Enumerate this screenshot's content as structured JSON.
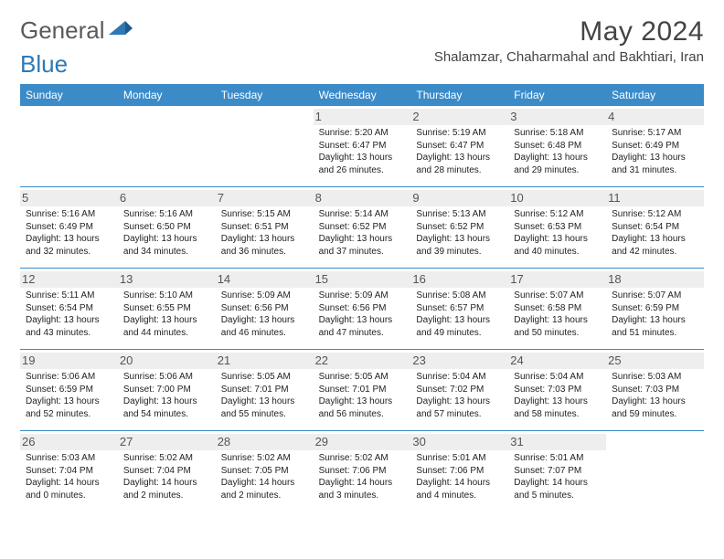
{
  "brand": {
    "word1": "General",
    "word2": "Blue"
  },
  "title": "May 2024",
  "location": "Shalamzar, Chaharmahal and Bakhtiari, Iran",
  "colors": {
    "headerBar": "#3b8bc9",
    "rowDivider": "#3b8bc9",
    "dayNumBg": "#eeeeee",
    "titleText": "#444444",
    "logoGrey": "#5a5a5a",
    "logoBlue": "#2f78b3"
  },
  "dayNames": [
    "Sunday",
    "Monday",
    "Tuesday",
    "Wednesday",
    "Thursday",
    "Friday",
    "Saturday"
  ],
  "layout": {
    "columns": 7,
    "rows": 5,
    "blankLeading": 3
  },
  "days": [
    {
      "n": 1,
      "sunrise": "5:20 AM",
      "sunset": "6:47 PM",
      "daylight": "13 hours and 26 minutes."
    },
    {
      "n": 2,
      "sunrise": "5:19 AM",
      "sunset": "6:47 PM",
      "daylight": "13 hours and 28 minutes."
    },
    {
      "n": 3,
      "sunrise": "5:18 AM",
      "sunset": "6:48 PM",
      "daylight": "13 hours and 29 minutes."
    },
    {
      "n": 4,
      "sunrise": "5:17 AM",
      "sunset": "6:49 PM",
      "daylight": "13 hours and 31 minutes."
    },
    {
      "n": 5,
      "sunrise": "5:16 AM",
      "sunset": "6:49 PM",
      "daylight": "13 hours and 32 minutes."
    },
    {
      "n": 6,
      "sunrise": "5:16 AM",
      "sunset": "6:50 PM",
      "daylight": "13 hours and 34 minutes."
    },
    {
      "n": 7,
      "sunrise": "5:15 AM",
      "sunset": "6:51 PM",
      "daylight": "13 hours and 36 minutes."
    },
    {
      "n": 8,
      "sunrise": "5:14 AM",
      "sunset": "6:52 PM",
      "daylight": "13 hours and 37 minutes."
    },
    {
      "n": 9,
      "sunrise": "5:13 AM",
      "sunset": "6:52 PM",
      "daylight": "13 hours and 39 minutes."
    },
    {
      "n": 10,
      "sunrise": "5:12 AM",
      "sunset": "6:53 PM",
      "daylight": "13 hours and 40 minutes."
    },
    {
      "n": 11,
      "sunrise": "5:12 AM",
      "sunset": "6:54 PM",
      "daylight": "13 hours and 42 minutes."
    },
    {
      "n": 12,
      "sunrise": "5:11 AM",
      "sunset": "6:54 PM",
      "daylight": "13 hours and 43 minutes."
    },
    {
      "n": 13,
      "sunrise": "5:10 AM",
      "sunset": "6:55 PM",
      "daylight": "13 hours and 44 minutes."
    },
    {
      "n": 14,
      "sunrise": "5:09 AM",
      "sunset": "6:56 PM",
      "daylight": "13 hours and 46 minutes."
    },
    {
      "n": 15,
      "sunrise": "5:09 AM",
      "sunset": "6:56 PM",
      "daylight": "13 hours and 47 minutes."
    },
    {
      "n": 16,
      "sunrise": "5:08 AM",
      "sunset": "6:57 PM",
      "daylight": "13 hours and 49 minutes."
    },
    {
      "n": 17,
      "sunrise": "5:07 AM",
      "sunset": "6:58 PM",
      "daylight": "13 hours and 50 minutes."
    },
    {
      "n": 18,
      "sunrise": "5:07 AM",
      "sunset": "6:59 PM",
      "daylight": "13 hours and 51 minutes."
    },
    {
      "n": 19,
      "sunrise": "5:06 AM",
      "sunset": "6:59 PM",
      "daylight": "13 hours and 52 minutes."
    },
    {
      "n": 20,
      "sunrise": "5:06 AM",
      "sunset": "7:00 PM",
      "daylight": "13 hours and 54 minutes."
    },
    {
      "n": 21,
      "sunrise": "5:05 AM",
      "sunset": "7:01 PM",
      "daylight": "13 hours and 55 minutes."
    },
    {
      "n": 22,
      "sunrise": "5:05 AM",
      "sunset": "7:01 PM",
      "daylight": "13 hours and 56 minutes."
    },
    {
      "n": 23,
      "sunrise": "5:04 AM",
      "sunset": "7:02 PM",
      "daylight": "13 hours and 57 minutes."
    },
    {
      "n": 24,
      "sunrise": "5:04 AM",
      "sunset": "7:03 PM",
      "daylight": "13 hours and 58 minutes."
    },
    {
      "n": 25,
      "sunrise": "5:03 AM",
      "sunset": "7:03 PM",
      "daylight": "13 hours and 59 minutes."
    },
    {
      "n": 26,
      "sunrise": "5:03 AM",
      "sunset": "7:04 PM",
      "daylight": "14 hours and 0 minutes."
    },
    {
      "n": 27,
      "sunrise": "5:02 AM",
      "sunset": "7:04 PM",
      "daylight": "14 hours and 2 minutes."
    },
    {
      "n": 28,
      "sunrise": "5:02 AM",
      "sunset": "7:05 PM",
      "daylight": "14 hours and 2 minutes."
    },
    {
      "n": 29,
      "sunrise": "5:02 AM",
      "sunset": "7:06 PM",
      "daylight": "14 hours and 3 minutes."
    },
    {
      "n": 30,
      "sunrise": "5:01 AM",
      "sunset": "7:06 PM",
      "daylight": "14 hours and 4 minutes."
    },
    {
      "n": 31,
      "sunrise": "5:01 AM",
      "sunset": "7:07 PM",
      "daylight": "14 hours and 5 minutes."
    }
  ],
  "labels": {
    "sunrise": "Sunrise:",
    "sunset": "Sunset:",
    "daylight": "Daylight:"
  }
}
